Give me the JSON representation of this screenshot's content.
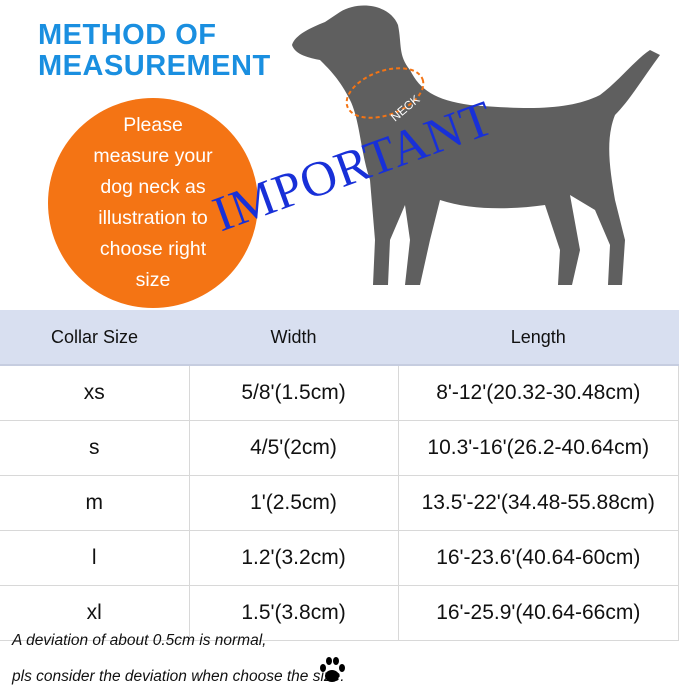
{
  "title": {
    "line1": "METHOD OF",
    "line2": "MEASUREMENT"
  },
  "circle": {
    "lines": [
      "Please",
      "measure your",
      "dog neck as",
      "illustration to",
      "choose right",
      "size"
    ]
  },
  "neck_label": "NECK",
  "important": "IMPORTANT",
  "colors": {
    "title": "#1a8fe0",
    "circle": "#f47414",
    "important": "#1830d8",
    "dog": "#5f5f5f",
    "header": "#d8dff0"
  },
  "table": {
    "headers": [
      "Collar Size",
      "Width",
      "Length"
    ],
    "rows": [
      [
        "xs",
        "5/8'(1.5cm)",
        "8'-12'(20.32-30.48cm)"
      ],
      [
        "s",
        "4/5'(2cm)",
        "10.3'-16'(26.2-40.64cm)"
      ],
      [
        "m",
        "1'(2.5cm)",
        "13.5'-22'(34.48-55.88cm)"
      ],
      [
        "l",
        "1.2'(3.2cm)",
        "16'-23.6'(40.64-60cm)"
      ],
      [
        "xl",
        "1.5'(3.8cm)",
        "16'-25.9'(40.64-66cm)"
      ]
    ]
  },
  "note": {
    "line1": "A deviation of about 0.5cm is normal,",
    "line2": "pls consider the deviation when choose the size."
  }
}
